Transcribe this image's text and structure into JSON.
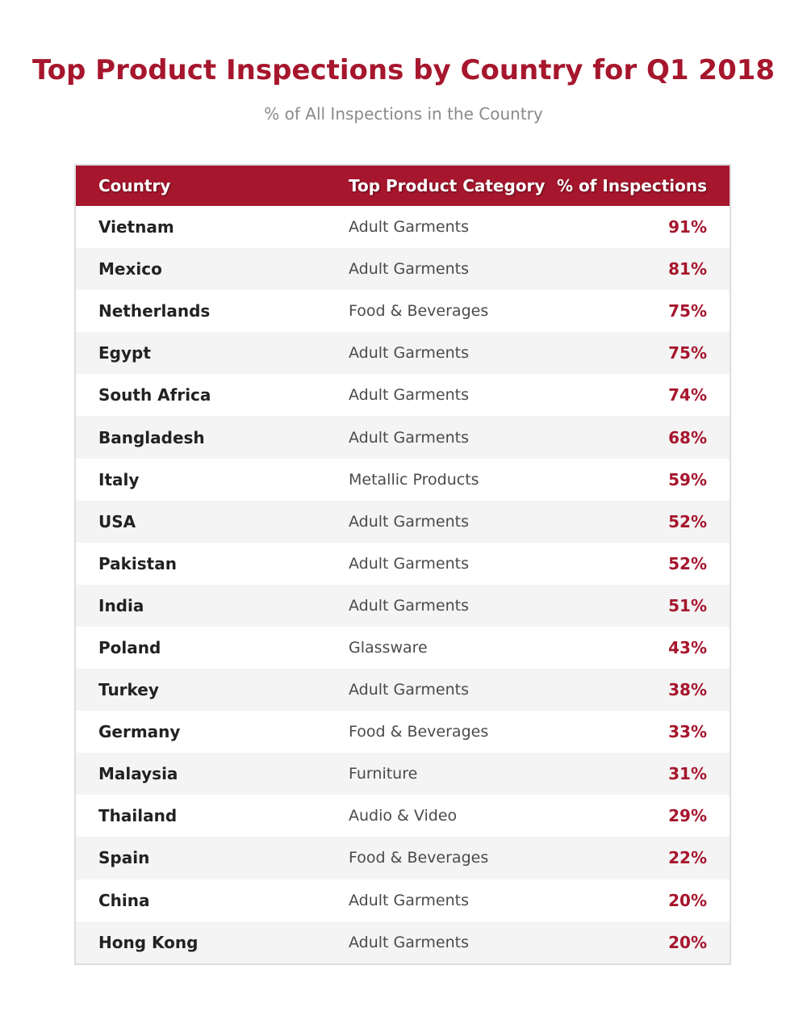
{
  "chart_data": {
    "type": "table",
    "title": "Top Product Inspections by Country for Q1 2018",
    "subtitle": "% of All Inspections in the Country",
    "columns": [
      "Country",
      "Top Product Category",
      "% of Inspections"
    ],
    "rows": [
      {
        "country": "Vietnam",
        "category": "Adult Garments",
        "percent": "91%"
      },
      {
        "country": "Mexico",
        "category": "Adult Garments",
        "percent": "81%"
      },
      {
        "country": "Netherlands",
        "category": "Food & Beverages",
        "percent": "75%"
      },
      {
        "country": "Egypt",
        "category": "Adult Garments",
        "percent": "75%"
      },
      {
        "country": "South Africa",
        "category": "Adult Garments",
        "percent": "74%"
      },
      {
        "country": "Bangladesh",
        "category": "Adult Garments",
        "percent": "68%"
      },
      {
        "country": "Italy",
        "category": "Metallic Products",
        "percent": "59%"
      },
      {
        "country": "USA",
        "category": "Adult Garments",
        "percent": "52%"
      },
      {
        "country": "Pakistan",
        "category": "Adult Garments",
        "percent": "52%"
      },
      {
        "country": "India",
        "category": "Adult Garments",
        "percent": "51%"
      },
      {
        "country": "Poland",
        "category": "Glassware",
        "percent": "43%"
      },
      {
        "country": "Turkey",
        "category": "Adult Garments",
        "percent": "38%"
      },
      {
        "country": "Germany",
        "category": "Food & Beverages",
        "percent": "33%"
      },
      {
        "country": "Malaysia",
        "category": "Furniture",
        "percent": "31%"
      },
      {
        "country": "Thailand",
        "category": "Audio & Video",
        "percent": "29%"
      },
      {
        "country": "Spain",
        "category": "Food & Beverages",
        "percent": "22%"
      },
      {
        "country": "China",
        "category": "Adult Garments",
        "percent": "20%"
      },
      {
        "country": "Hong Kong",
        "category": "Adult Garments",
        "percent": "20%"
      }
    ]
  },
  "colors": {
    "accent": "#a6162d",
    "header_text": "#ffffff",
    "row_alt": "#f4f4f4",
    "subtitle": "#8a8a8a"
  }
}
